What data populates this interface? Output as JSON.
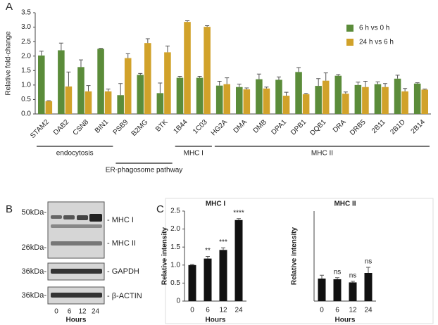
{
  "panel_labels": [
    "A",
    "B",
    "C"
  ],
  "blot": {
    "left_labels": [
      "50kDa-",
      "26kDa-",
      "36kDa-",
      "36kDa-"
    ],
    "right_labels": [
      "- MHC I",
      "- MHC II",
      "- GAPDH",
      "- β-ACTIN"
    ],
    "lanes": [
      "0",
      "6",
      "12",
      "24"
    ],
    "x_label": "Hours"
  },
  "chart_data": [
    {
      "type": "bar",
      "y_label": "Relative fold-change",
      "categories": [
        "STAM2",
        "DAB2",
        "CSN8",
        "BIN1",
        "PSB9",
        "B2MG",
        "BTK",
        "1B44",
        "1C03",
        "HG2A",
        "DMA",
        "DMB",
        "DPA1",
        "DPB1",
        "DQB1",
        "DRA",
        "DRB5",
        "2B11",
        "2B1D",
        "2B14"
      ],
      "series": [
        {
          "name": "6 h vs 0 h",
          "color": "#5b8c3a",
          "values": [
            2.02,
            2.2,
            1.62,
            2.25,
            0.65,
            1.35,
            0.72,
            1.25,
            1.25,
            0.98,
            0.93,
            1.2,
            1.18,
            1.45,
            0.97,
            1.32,
            1.0,
            1.03,
            1.22,
            1.05
          ],
          "errors": [
            0.15,
            0.25,
            0.25,
            0.02,
            0.4,
            0.05,
            0.35,
            0.05,
            0.05,
            0.15,
            0.1,
            0.18,
            0.1,
            0.15,
            0.25,
            0.04,
            0.1,
            0.08,
            0.12,
            0.03
          ]
        },
        {
          "name": "24 h vs 6 h",
          "color": "#d1a22a",
          "values": [
            0.44,
            0.95,
            0.78,
            0.78,
            1.93,
            2.45,
            2.13,
            3.18,
            3.01,
            1.03,
            0.85,
            0.88,
            0.63,
            0.68,
            1.15,
            0.7,
            0.93,
            0.93,
            0.78,
            0.84
          ],
          "errors": [
            0.02,
            0.5,
            0.2,
            0.08,
            0.15,
            0.15,
            0.22,
            0.04,
            0.04,
            0.22,
            0.05,
            0.05,
            0.12,
            0.03,
            0.27,
            0.06,
            0.2,
            0.12,
            0.1,
            0.02
          ]
        }
      ],
      "groups": [
        {
          "label": "endocytosis",
          "from": "STAM2",
          "to": "BIN1"
        },
        {
          "label": "ER-phagosome pathway",
          "from": "PSB9",
          "to": "BTK"
        },
        {
          "label": "MHC I",
          "from": "1B44",
          "to": "1C03"
        },
        {
          "label": "MHC II",
          "from": "HG2A",
          "to": "2B14"
        }
      ],
      "ylim": [
        0,
        3.5
      ],
      "yticks": [
        {
          "value": 0,
          "label": "0.0"
        },
        0.5,
        {
          "value": 1,
          "label": "1.0"
        },
        1.5,
        {
          "value": 2,
          "label": "2.0"
        },
        2.5,
        {
          "value": 3,
          "label": "3.0"
        },
        3.5
      ],
      "legend": "upper right"
    },
    {
      "type": "bar",
      "title": "MHC I",
      "y_label": "Relative intensity",
      "x_label": "Hours",
      "color": "#111111",
      "categories": [
        "0",
        "6",
        "12",
        "24"
      ],
      "values": [
        1.0,
        1.18,
        1.42,
        2.25
      ],
      "errors": [
        0.02,
        0.06,
        0.06,
        0.04
      ],
      "annotations": [
        null,
        "**",
        "***",
        "****"
      ],
      "ylim": [
        0,
        2.5
      ],
      "yticks": [
        0,
        0.5,
        {
          "value": 1,
          "label": "1.0"
        },
        1.5,
        {
          "value": 2,
          "label": "2.0"
        },
        2.5
      ]
    },
    {
      "type": "bar",
      "title": "MHC II",
      "y_label": "Relative intensity",
      "x_label": "Hours",
      "color": "#111111",
      "categories": [
        "0",
        "6",
        "12",
        "24"
      ],
      "values": [
        1.0,
        0.97,
        0.83,
        1.25
      ],
      "errors": [
        0.15,
        0.07,
        0.05,
        0.25
      ],
      "annotations": [
        null,
        "ns",
        "ns",
        "ns"
      ],
      "ylim": [
        0,
        4
      ]
    }
  ]
}
